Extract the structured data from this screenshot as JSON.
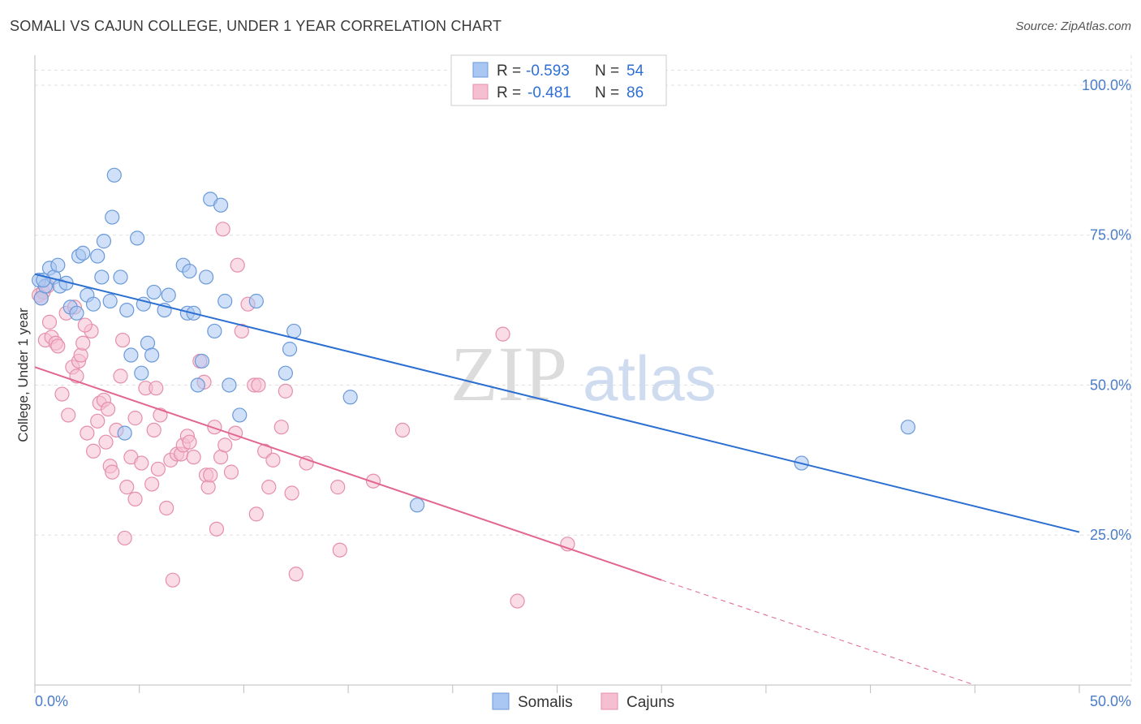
{
  "title": "SOMALI VS CAJUN COLLEGE, UNDER 1 YEAR CORRELATION CHART",
  "source": "Source: ZipAtlas.com",
  "watermark": {
    "zip": "ZIP",
    "atlas": "atlas"
  },
  "colors": {
    "somali_fill": "#a9c7f2",
    "somali_stroke": "#6a9ad8",
    "somali_line": "#2a6fd1",
    "cajun_fill": "#f6bfd1",
    "cajun_stroke": "#e58fab",
    "cajun_line": "#e2668f",
    "tick_color": "#4a7cc7"
  },
  "legend": {
    "rows": [
      {
        "r_label": "R = ",
        "r_value": "-0.593",
        "n_label": "N = ",
        "n_value": "54"
      },
      {
        "r_label": "R = ",
        "r_value": "-0.481",
        "n_label": "N = ",
        "n_value": "86"
      }
    ]
  },
  "chart_data": {
    "type": "scatter",
    "title": "SOMALI VS CAJUN COLLEGE, UNDER 1 YEAR CORRELATION CHART",
    "xlabel": "",
    "ylabel": "College, Under 1 year",
    "xlim": [
      0,
      50
    ],
    "ylim": [
      0,
      105
    ],
    "x_tick_labels": [
      "0.0%",
      "50.0%"
    ],
    "y_ticks": [
      25,
      50,
      75,
      100
    ],
    "y_tick_labels": [
      "25.0%",
      "50.0%",
      "75.0%",
      "100.0%"
    ],
    "grid": true,
    "legend_position": "top-center",
    "series": [
      {
        "name": "Somalis",
        "points": [
          [
            0.2,
            67.5
          ],
          [
            0.3,
            64.5
          ],
          [
            0.5,
            66.5
          ],
          [
            0.7,
            69.5
          ],
          [
            0.9,
            68
          ],
          [
            1.1,
            70
          ],
          [
            1.2,
            66.5
          ],
          [
            1.5,
            67
          ],
          [
            1.7,
            63
          ],
          [
            2,
            62
          ],
          [
            2.1,
            71.5
          ],
          [
            2.3,
            72
          ],
          [
            2.5,
            65
          ],
          [
            2.8,
            63.5
          ],
          [
            3,
            71.5
          ],
          [
            3.2,
            68
          ],
          [
            3.3,
            74
          ],
          [
            3.6,
            64
          ],
          [
            3.7,
            78
          ],
          [
            3.8,
            85
          ],
          [
            4.1,
            68
          ],
          [
            4.3,
            42
          ],
          [
            4.4,
            62.5
          ],
          [
            4.6,
            55
          ],
          [
            4.9,
            74.5
          ],
          [
            5.1,
            52
          ],
          [
            5.2,
            63.5
          ],
          [
            5.4,
            57
          ],
          [
            5.6,
            55
          ],
          [
            5.7,
            65.5
          ],
          [
            6.2,
            62.5
          ],
          [
            6.4,
            65
          ],
          [
            7.1,
            70
          ],
          [
            7.3,
            62
          ],
          [
            7.4,
            69
          ],
          [
            7.6,
            62
          ],
          [
            7.8,
            50
          ],
          [
            8,
            54
          ],
          [
            8.2,
            68
          ],
          [
            8.4,
            81
          ],
          [
            8.6,
            59
          ],
          [
            8.9,
            80
          ],
          [
            9.1,
            64
          ],
          [
            9.3,
            50
          ],
          [
            9.8,
            45
          ],
          [
            10.6,
            64
          ],
          [
            12,
            52
          ],
          [
            12.2,
            56
          ],
          [
            12.4,
            59
          ],
          [
            15.1,
            48
          ],
          [
            18.3,
            30
          ],
          [
            36.7,
            37
          ],
          [
            41.8,
            43
          ],
          [
            0.4,
            67.5
          ]
        ]
      },
      {
        "name": "Cajuns",
        "points": [
          [
            0.2,
            65
          ],
          [
            0.4,
            65.5
          ],
          [
            0.5,
            57.5
          ],
          [
            0.7,
            60.5
          ],
          [
            0.8,
            58
          ],
          [
            1,
            57
          ],
          [
            1.1,
            56.5
          ],
          [
            1.3,
            48.5
          ],
          [
            1.5,
            62
          ],
          [
            1.6,
            45
          ],
          [
            1.8,
            53
          ],
          [
            2,
            51.5
          ],
          [
            2.1,
            54
          ],
          [
            2.2,
            55
          ],
          [
            2.3,
            57
          ],
          [
            2.5,
            42
          ],
          [
            2.7,
            59
          ],
          [
            2.8,
            39
          ],
          [
            3,
            44
          ],
          [
            3.1,
            47
          ],
          [
            3.3,
            47.5
          ],
          [
            3.4,
            40.5
          ],
          [
            3.6,
            36.5
          ],
          [
            3.7,
            35.5
          ],
          [
            3.9,
            42.5
          ],
          [
            4.2,
            57.5
          ],
          [
            4.1,
            51.5
          ],
          [
            4.3,
            24.5
          ],
          [
            4.4,
            33
          ],
          [
            4.6,
            38
          ],
          [
            4.8,
            44.5
          ],
          [
            4.8,
            31
          ],
          [
            5.1,
            37
          ],
          [
            5.3,
            49.5
          ],
          [
            5.6,
            33.5
          ],
          [
            5.7,
            42.5
          ],
          [
            5.8,
            49.5
          ],
          [
            5.9,
            36
          ],
          [
            6,
            45
          ],
          [
            6.3,
            29.5
          ],
          [
            6.5,
            37.5
          ],
          [
            6.8,
            38.5
          ],
          [
            6.6,
            17.5
          ],
          [
            7,
            38.5
          ],
          [
            7.1,
            40
          ],
          [
            7.3,
            41.5
          ],
          [
            7.4,
            40.5
          ],
          [
            7.6,
            38
          ],
          [
            7.9,
            54
          ],
          [
            8.1,
            50.5
          ],
          [
            8.2,
            35
          ],
          [
            8.3,
            33
          ],
          [
            8.4,
            35
          ],
          [
            8.6,
            43
          ],
          [
            8.7,
            26
          ],
          [
            8.9,
            38
          ],
          [
            9,
            76
          ],
          [
            9.1,
            40
          ],
          [
            9.4,
            35.5
          ],
          [
            9.6,
            42
          ],
          [
            9.7,
            70
          ],
          [
            9.9,
            59
          ],
          [
            10.2,
            63.5
          ],
          [
            10.5,
            50
          ],
          [
            10.7,
            50
          ],
          [
            10.6,
            28.5
          ],
          [
            11,
            39
          ],
          [
            11.2,
            33
          ],
          [
            11.4,
            37.5
          ],
          [
            11.8,
            43
          ],
          [
            12,
            49
          ],
          [
            12.3,
            32
          ],
          [
            12.5,
            18.5
          ],
          [
            13,
            37
          ],
          [
            14.5,
            33
          ],
          [
            14.6,
            22.5
          ],
          [
            16.2,
            34
          ],
          [
            17.6,
            42.5
          ],
          [
            22.4,
            58.5
          ],
          [
            23.1,
            14
          ],
          [
            25.5,
            23.5
          ],
          [
            0.3,
            64.5
          ],
          [
            0.6,
            66.5
          ],
          [
            1.9,
            63
          ],
          [
            2.4,
            60
          ],
          [
            3.5,
            46
          ]
        ]
      }
    ],
    "trend_lines": [
      {
        "series": "Somalis",
        "x": [
          0,
          50
        ],
        "y": [
          68.5,
          25.5
        ],
        "style": "solid"
      },
      {
        "series": "Cajuns",
        "x": [
          0,
          30
        ],
        "y": [
          53,
          17.5
        ],
        "style": "solid"
      },
      {
        "series": "Cajuns",
        "x": [
          30,
          45
        ],
        "y": [
          17.5,
          0
        ],
        "style": "dashed"
      }
    ]
  }
}
